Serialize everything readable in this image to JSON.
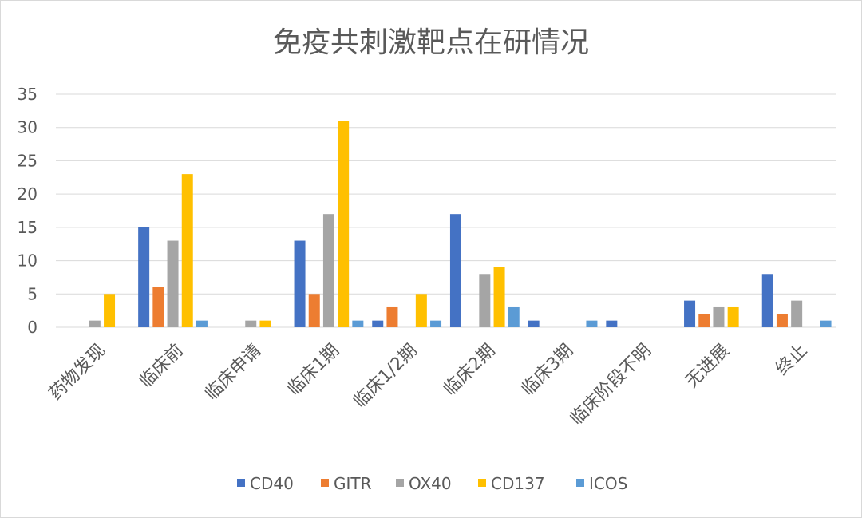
{
  "chart_data": {
    "type": "bar",
    "title": "免疫共刺激靶点在研情况",
    "xlabel": "",
    "ylabel": "",
    "ylim": [
      0,
      35
    ],
    "yticks": [
      0,
      5,
      10,
      15,
      20,
      25,
      30,
      35
    ],
    "grid": true,
    "legend_position": "bottom",
    "categories": [
      "药物发现",
      "临床前",
      "临床申请",
      "临床1期",
      "临床1/2期",
      "临床2期",
      "临床3期",
      "临床阶段不明",
      "无进展",
      "终止"
    ],
    "series": [
      {
        "name": "CD40",
        "color": "#4472C4",
        "values": [
          0,
          15,
          0,
          13,
          1,
          17,
          1,
          1,
          4,
          8
        ]
      },
      {
        "name": "GITR",
        "color": "#ED7D31",
        "values": [
          0,
          6,
          0,
          5,
          3,
          0,
          0,
          0,
          2,
          2
        ]
      },
      {
        "name": "OX40",
        "color": "#A5A5A5",
        "values": [
          1,
          13,
          1,
          17,
          0,
          8,
          0,
          0,
          3,
          4
        ]
      },
      {
        "name": "CD137",
        "color": "#FFC000",
        "values": [
          5,
          23,
          1,
          31,
          5,
          9,
          0,
          0,
          3,
          0
        ]
      },
      {
        "name": "ICOS",
        "color": "#5B9BD5",
        "values": [
          0,
          1,
          0,
          1,
          1,
          3,
          1,
          0,
          0,
          1
        ]
      }
    ]
  }
}
